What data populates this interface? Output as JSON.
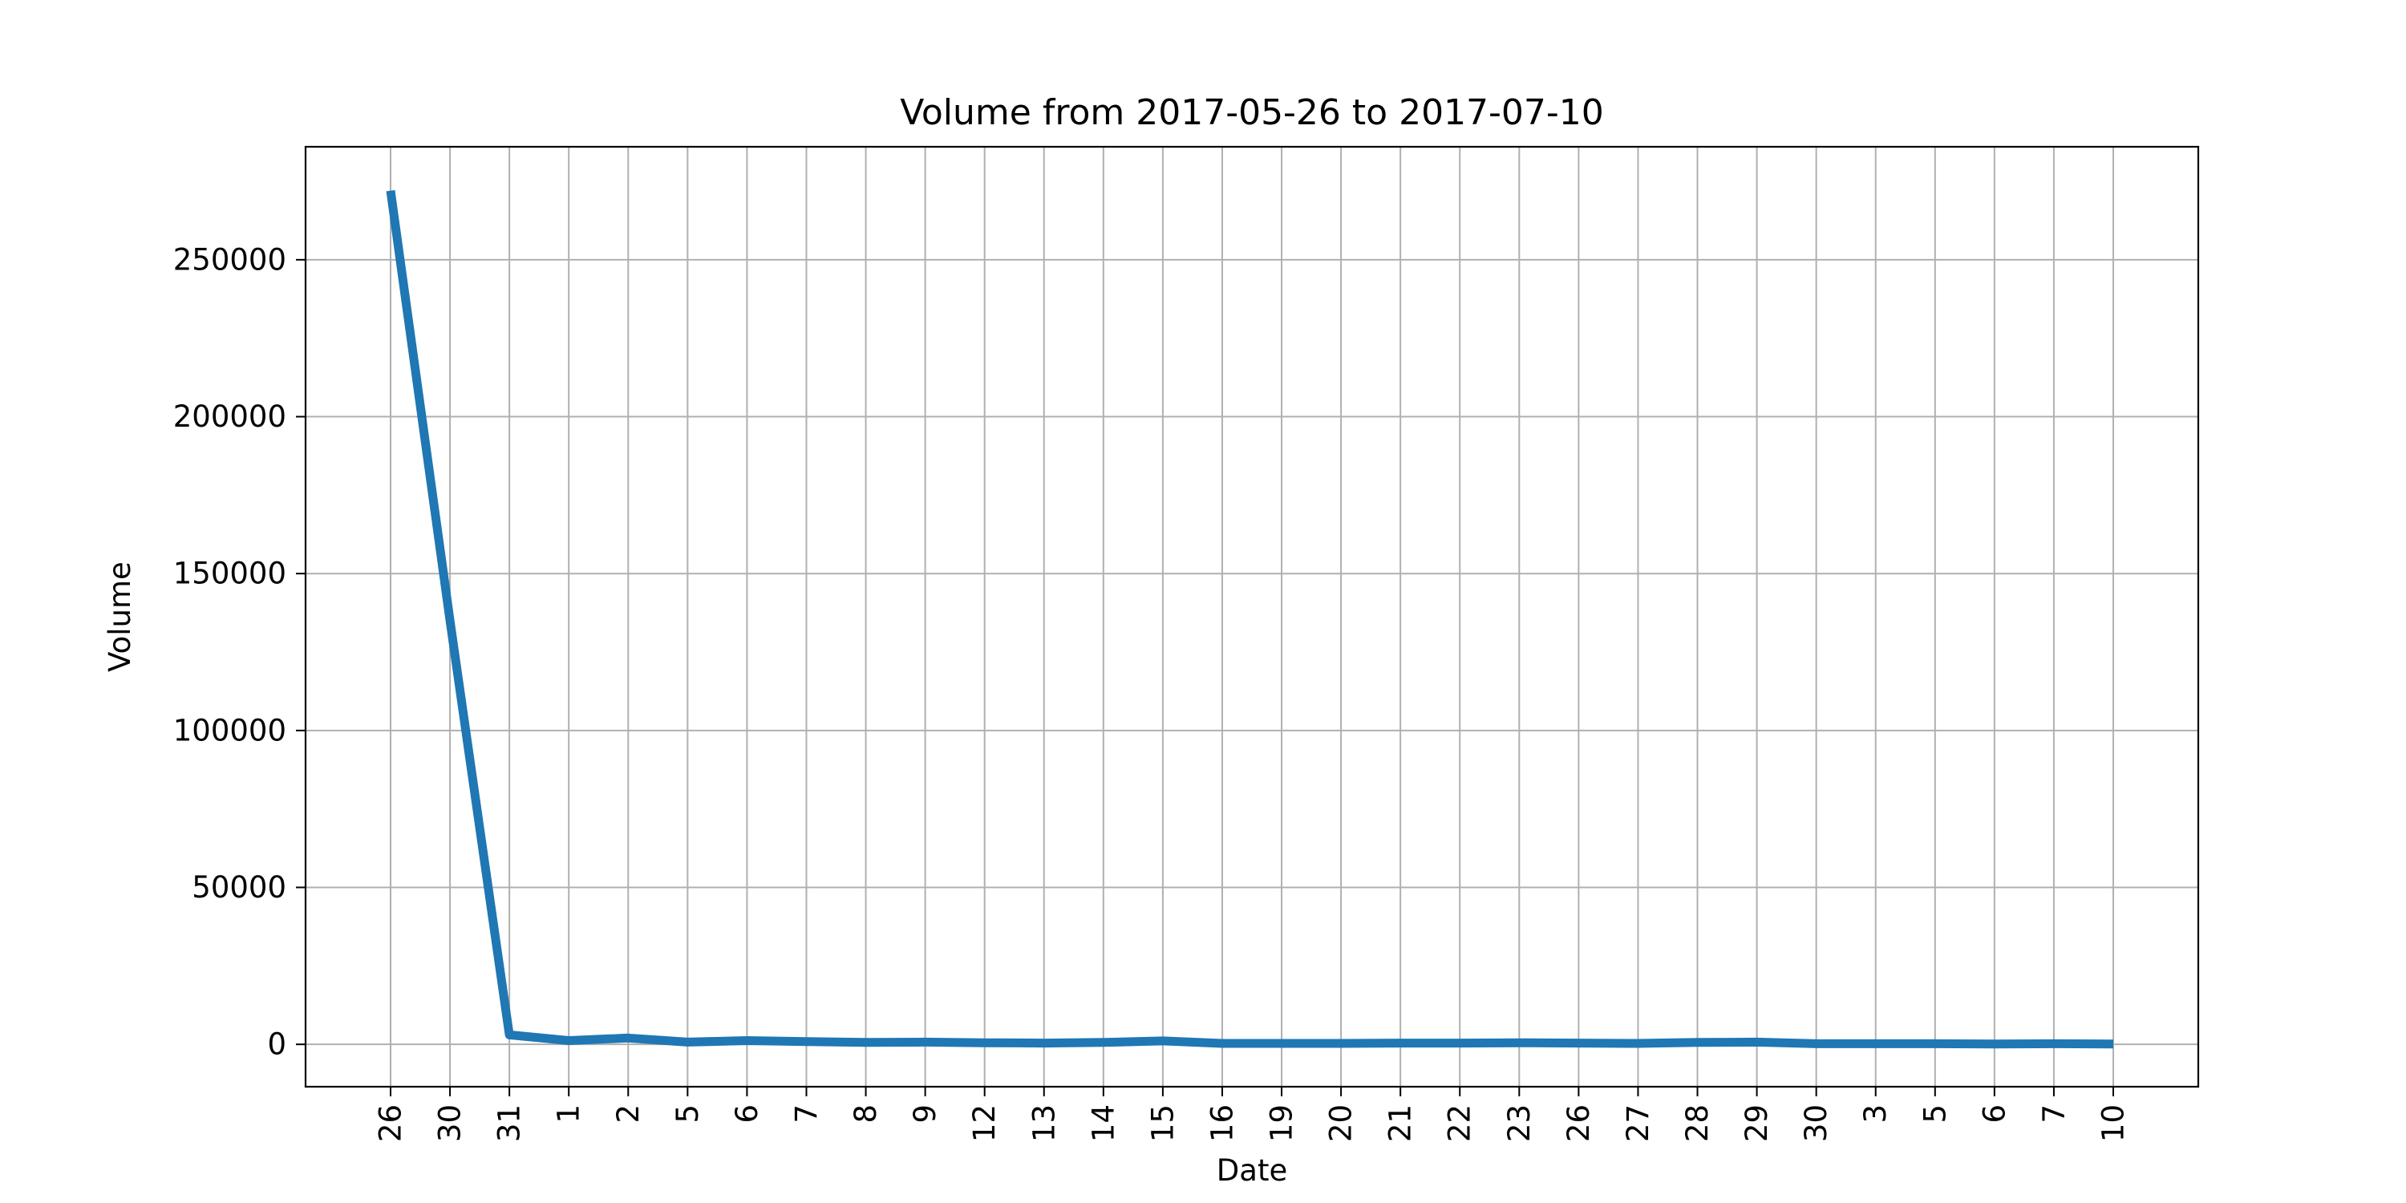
{
  "chart_data": {
    "type": "line",
    "title": "Volume from 2017-05-26 to 2017-07-10",
    "xlabel": "Date",
    "ylabel": "Volume",
    "x": [
      "2017-05-26",
      "2017-05-30",
      "2017-05-31",
      "2017-06-01",
      "2017-06-02",
      "2017-06-05",
      "2017-06-06",
      "2017-06-07",
      "2017-06-08",
      "2017-06-09",
      "2017-06-12",
      "2017-06-13",
      "2017-06-14",
      "2017-06-15",
      "2017-06-16",
      "2017-06-19",
      "2017-06-20",
      "2017-06-21",
      "2017-06-22",
      "2017-06-23",
      "2017-06-26",
      "2017-06-27",
      "2017-06-28",
      "2017-06-29",
      "2017-06-30",
      "2017-07-03",
      "2017-07-05",
      "2017-07-06",
      "2017-07-07",
      "2017-07-10"
    ],
    "tick_labels": [
      "26",
      "30",
      "31",
      "1",
      "2",
      "5",
      "6",
      "7",
      "8",
      "9",
      "12",
      "13",
      "14",
      "15",
      "16",
      "19",
      "20",
      "21",
      "22",
      "23",
      "26",
      "27",
      "28",
      "29",
      "30",
      "3",
      "5",
      "6",
      "7",
      "10"
    ],
    "series": [
      {
        "values": [
          272000,
          135000,
          3000,
          1200,
          2000,
          700,
          1200,
          900,
          600,
          700,
          500,
          400,
          600,
          1100,
          300,
          300,
          300,
          400,
          400,
          500,
          400,
          300,
          600,
          700,
          200,
          200,
          200,
          100,
          200,
          100
        ]
      }
    ],
    "ylim": [
      -13500,
      286000
    ],
    "yticks": [
      0,
      50000,
      100000,
      150000,
      200000,
      250000
    ],
    "grid": true,
    "line_color": "#1f77b4",
    "grid_color": "#b0b0b0"
  }
}
